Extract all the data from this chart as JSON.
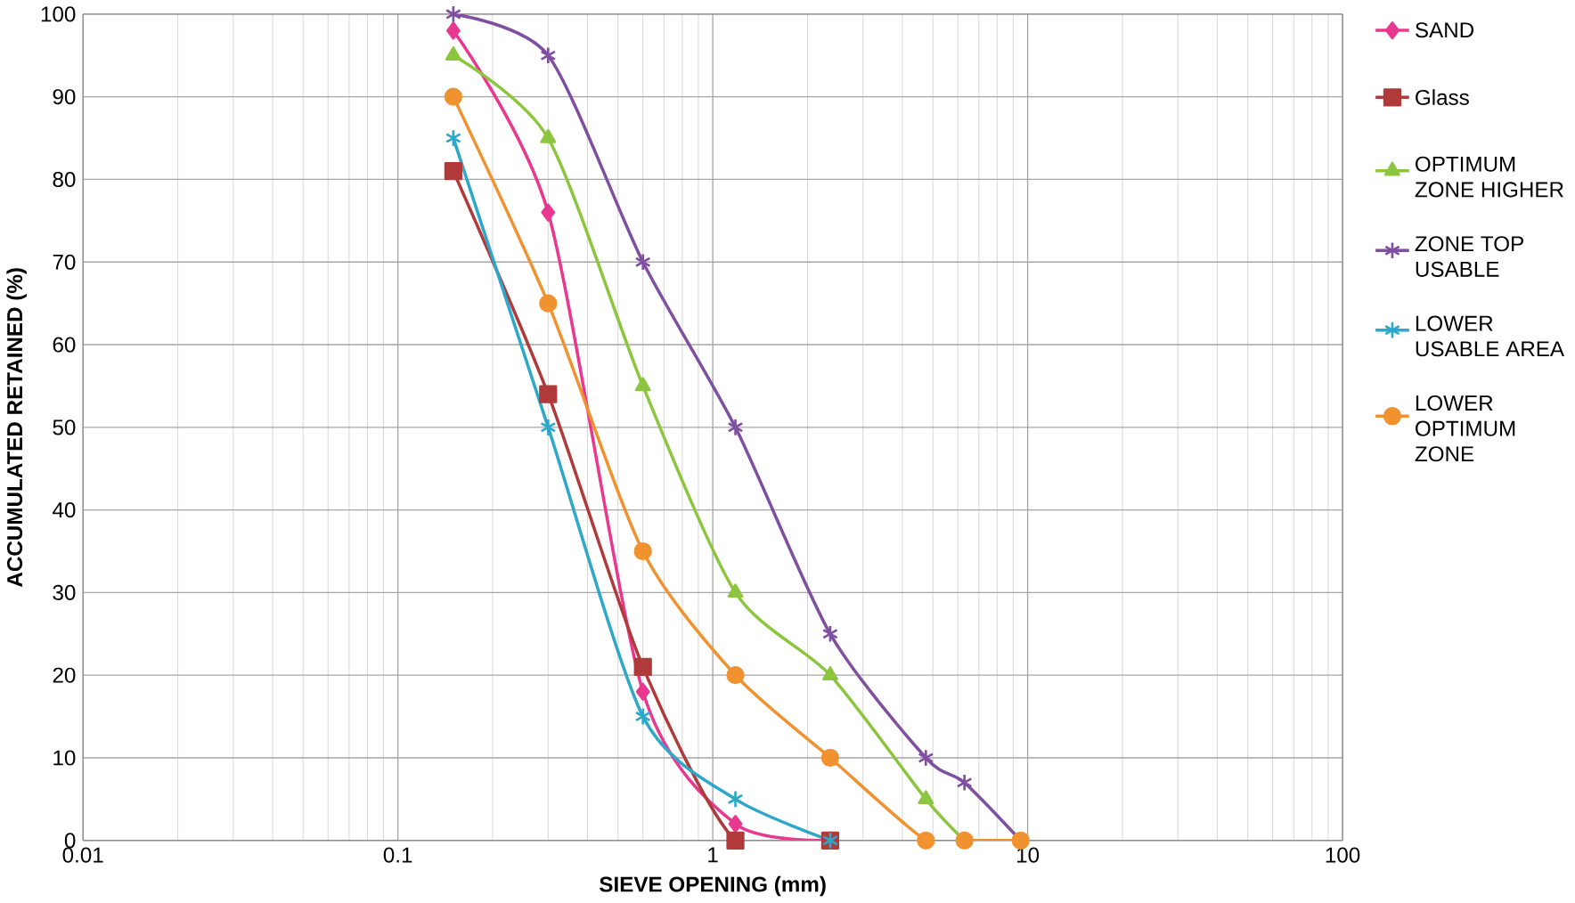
{
  "chart_data": {
    "type": "line",
    "xlabel": "SIEVE OPENING (mm)",
    "ylabel": "ACCUMULATED RETAINED (%)",
    "log": "x",
    "xlim": [
      0.01,
      100
    ],
    "xticks": [
      0.01,
      0.1,
      1,
      10,
      100
    ],
    "ylim": [
      0,
      100
    ],
    "yticks": [
      0,
      10,
      20,
      30,
      40,
      50,
      60,
      70,
      80,
      90,
      100
    ],
    "grid": true,
    "legend": "right",
    "series": [
      {
        "name": "SAND",
        "color": "#e8388f",
        "marker": "diamond",
        "x": [
          0.15,
          0.3,
          0.6,
          1.18,
          2.36
        ],
        "values": [
          98,
          76,
          18,
          2,
          0
        ]
      },
      {
        "name": "Glass",
        "color": "#b03a3a",
        "marker": "square",
        "x": [
          0.15,
          0.3,
          0.6,
          1.18,
          2.36
        ],
        "values": [
          81,
          54,
          21,
          0,
          0
        ]
      },
      {
        "name": "OPTIMUM ZONE HIGHER",
        "color": "#8cc63f",
        "marker": "triangle",
        "x": [
          0.15,
          0.3,
          0.6,
          1.18,
          2.36,
          4.75,
          6.3
        ],
        "values": [
          95,
          85,
          55,
          30,
          20,
          5,
          0
        ]
      },
      {
        "name": "ZONE TOP USABLE",
        "color": "#7f4fa0",
        "marker": "cross",
        "x": [
          0.15,
          0.3,
          0.6,
          1.18,
          2.36,
          4.75,
          6.3,
          9.5
        ],
        "values": [
          100,
          95,
          70,
          50,
          25,
          10,
          7,
          0
        ]
      },
      {
        "name": "LOWER USABLE AREA",
        "color": "#2ea8c8",
        "marker": "cross",
        "x": [
          0.15,
          0.3,
          0.6,
          1.18,
          2.36
        ],
        "values": [
          85,
          50,
          15,
          5,
          0
        ]
      },
      {
        "name": "LOWER OPTIMUM ZONE",
        "color": "#f0922f",
        "marker": "circle",
        "x": [
          0.15,
          0.3,
          0.6,
          1.18,
          2.36,
          4.75,
          6.3,
          9.5
        ],
        "values": [
          90,
          65,
          35,
          20,
          10,
          0,
          0,
          0
        ]
      }
    ]
  }
}
